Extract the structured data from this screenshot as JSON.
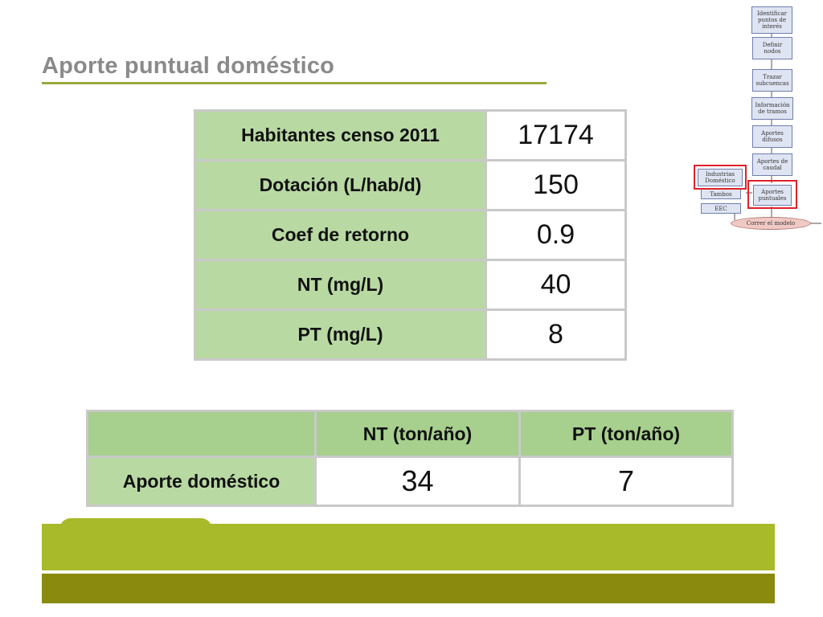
{
  "slide": {
    "title": "Aporte puntual doméstico"
  },
  "params_table": {
    "rows": [
      {
        "label": "Habitantes censo 2011",
        "value": "17174"
      },
      {
        "label": "Dotación (L/hab/d)",
        "value": "150"
      },
      {
        "label": "Coef de retorno",
        "value": "0.9"
      },
      {
        "label": "NT (mg/L)",
        "value": "40"
      },
      {
        "label": "PT (mg/L)",
        "value": "8"
      }
    ]
  },
  "results_table": {
    "headers": [
      "",
      "NT (ton/año)",
      "PT (ton/año)"
    ],
    "row": {
      "label": "Aporte doméstico",
      "nt": "34",
      "pt": "7"
    }
  },
  "flowchart": {
    "nodes": [
      "Identificar puntos de interés",
      "Definir nodos",
      "Trazar subcuencas",
      "Información de tramos",
      "Aportes difusos",
      "Aportes de caudal",
      "Aportes puntuales",
      "Industrias Doméstico",
      "Tambos",
      "EEC"
    ],
    "final": "Correr el modelo",
    "highlight_color": "#e0202a"
  },
  "colors": {
    "title": "#8a8a8a",
    "label_fill": "#b9d9a3",
    "header_fill": "#a7cf8d",
    "band_top": "#a8ba2a",
    "band_bottom": "#8a8a0f"
  }
}
